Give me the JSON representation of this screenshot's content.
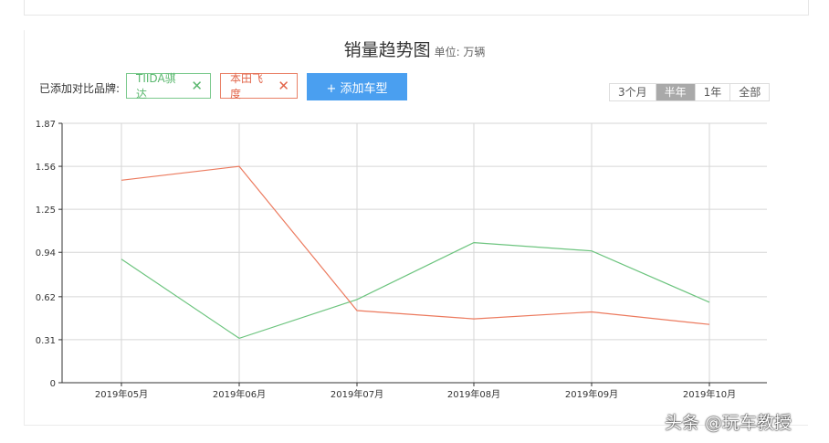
{
  "header": {
    "title": "销量趋势图",
    "unit": "单位: 万辆"
  },
  "compare": {
    "label": "已添加对比品牌:",
    "brands": [
      {
        "name": "TIIDA骐达",
        "color": "#5bb86f"
      },
      {
        "name": "本田飞度",
        "color": "#e2654a"
      }
    ],
    "add_button": "+ 添加车型"
  },
  "ranges": [
    {
      "label": "3个月",
      "active": false
    },
    {
      "label": "半年",
      "active": true
    },
    {
      "label": "1年",
      "active": false
    },
    {
      "label": "全部",
      "active": false
    }
  ],
  "chart_data": {
    "type": "line",
    "categories": [
      "2019年05月",
      "2019年06月",
      "2019年07月",
      "2019年08月",
      "2019年09月",
      "2019年10月"
    ],
    "y_ticks": [
      "0",
      "0.31",
      "0.62",
      "0.94",
      "1.25",
      "1.56",
      "1.87"
    ],
    "ylim": [
      0,
      1.87
    ],
    "grid": true,
    "series": [
      {
        "values": [
          0.89,
          0.32,
          0.6,
          1.01,
          0.95,
          0.58
        ],
        "color": "#6cc47e"
      },
      {
        "values": [
          1.46,
          1.56,
          0.52,
          0.46,
          0.51,
          0.42
        ],
        "color": "#ec7a5e"
      }
    ]
  },
  "watermark": "头条 @玩车教授"
}
